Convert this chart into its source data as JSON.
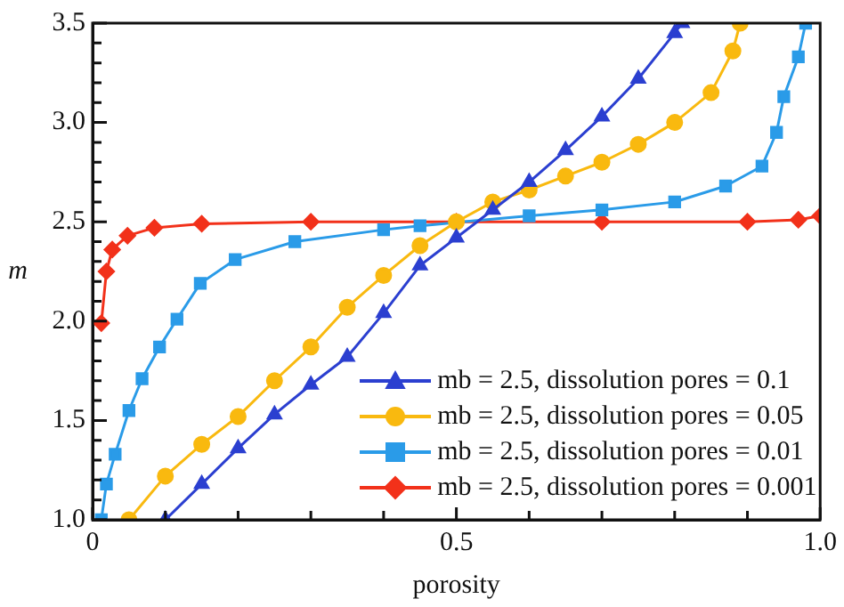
{
  "chart_data": {
    "type": "line",
    "xlabel": "porosity",
    "ylabel": "m",
    "xlim": [
      0,
      1
    ],
    "xticks": [
      0,
      {
        "value": 0.1,
        "label": null
      },
      {
        "value": 0.2,
        "label": null
      },
      {
        "value": 0.3,
        "label": null
      },
      {
        "value": 0.4,
        "label": null
      },
      0.5,
      {
        "value": 0.6,
        "label": null
      },
      {
        "value": 0.7,
        "label": null
      },
      {
        "value": 0.8,
        "label": null
      },
      {
        "value": 0.9,
        "label": null
      },
      {
        "value": 1,
        "label": "1.0"
      }
    ],
    "ylim": [
      1,
      3.5
    ],
    "yticks": [
      {
        "value": 1,
        "label": "1.0"
      },
      1.5,
      {
        "value": 2,
        "label": "2.0"
      },
      2.5,
      {
        "value": 3,
        "label": "3.0"
      },
      3.5
    ],
    "grid": false,
    "legend": "bottom right",
    "line_style": "solid",
    "series": [
      {
        "name": "mb = 2.5, dissolution pores = 0.1",
        "color": "#2b3fd0",
        "marker": "triangle",
        "x": [
          0.1,
          0.15,
          0.2,
          0.25,
          0.3,
          0.35,
          0.4,
          0.45,
          0.5,
          0.55,
          0.6,
          0.65,
          0.7,
          0.75,
          0.8,
          0.81
        ],
        "values": [
          1.0,
          1.18,
          1.36,
          1.53,
          1.68,
          1.82,
          2.04,
          2.28,
          2.42,
          2.56,
          2.7,
          2.86,
          3.03,
          3.22,
          3.45,
          3.5
        ]
      },
      {
        "name": "mb = 2.5, dissolution pores = 0.05",
        "color": "#f9b90f",
        "marker": "circle",
        "x": [
          0.05,
          0.1,
          0.15,
          0.2,
          0.25,
          0.3,
          0.35,
          0.4,
          0.45,
          0.5,
          0.55,
          0.6,
          0.65,
          0.7,
          0.75,
          0.8,
          0.85,
          0.88,
          0.89
        ],
        "values": [
          1.0,
          1.22,
          1.38,
          1.52,
          1.7,
          1.87,
          2.07,
          2.23,
          2.38,
          2.5,
          2.6,
          2.66,
          2.73,
          2.8,
          2.89,
          3.0,
          3.15,
          3.36,
          3.5
        ]
      },
      {
        "name": "mb = 2.5, dissolution pores = 0.01",
        "color": "#2a9be8",
        "marker": "square",
        "x": [
          0.012,
          0.019,
          0.031,
          0.05,
          0.068,
          0.092,
          0.116,
          0.148,
          0.196,
          0.278,
          0.4,
          0.45,
          0.6,
          0.7,
          0.8,
          0.87,
          0.92,
          0.94,
          0.95,
          0.97,
          0.98
        ],
        "values": [
          1.0,
          1.18,
          1.33,
          1.55,
          1.71,
          1.87,
          2.01,
          2.19,
          2.31,
          2.4,
          2.46,
          2.48,
          2.53,
          2.56,
          2.6,
          2.68,
          2.78,
          2.95,
          3.13,
          3.33,
          3.5
        ]
      },
      {
        "name": "mb = 2.5, dissolution pores = 0.001",
        "color": "#f2311a",
        "marker": "diamond",
        "x": [
          0.012,
          0.019,
          0.027,
          0.048,
          0.085,
          0.15,
          0.3,
          0.5,
          0.7,
          0.9,
          0.97,
          1.0
        ],
        "values": [
          1.99,
          2.25,
          2.36,
          2.43,
          2.47,
          2.49,
          2.5,
          2.5,
          2.5,
          2.5,
          2.51,
          2.53
        ]
      }
    ]
  }
}
